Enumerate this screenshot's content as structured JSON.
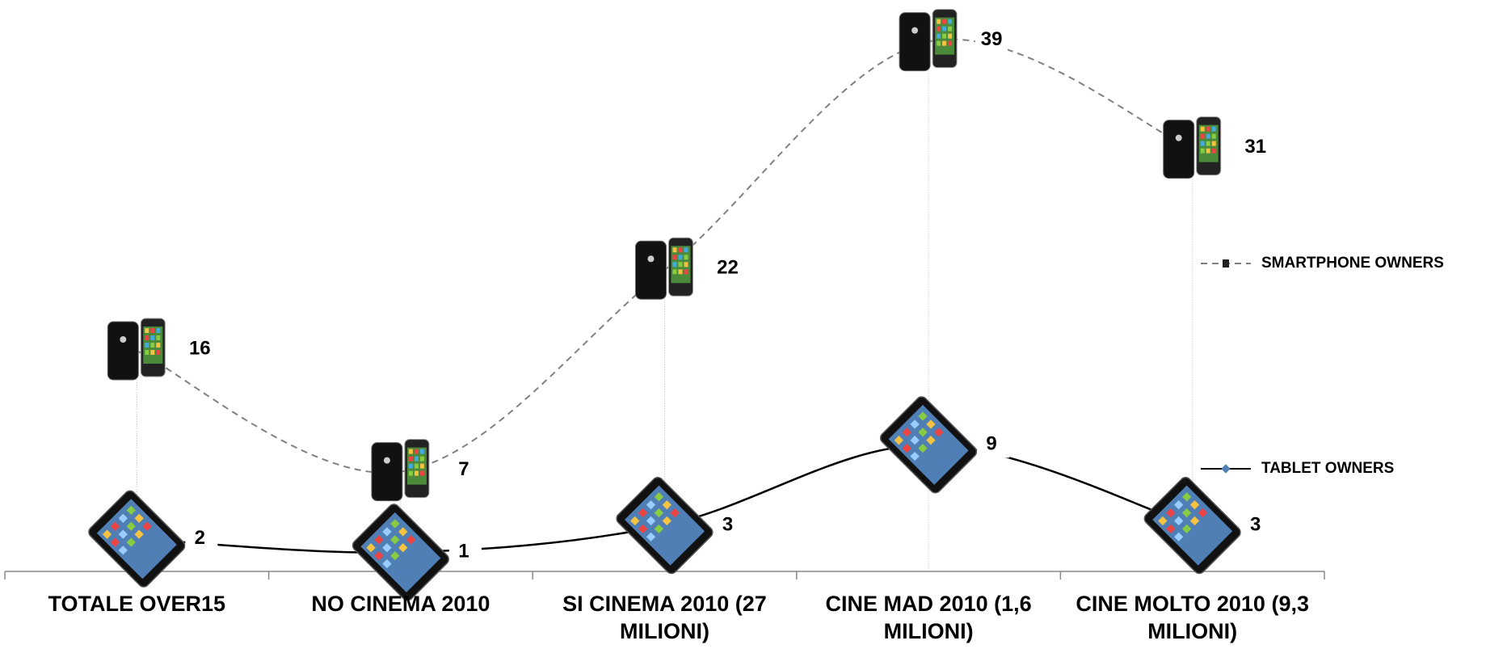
{
  "chart_data": {
    "type": "line",
    "categories": [
      "TOTALE OVER15",
      "NO CINEMA 2010",
      "SI CINEMA 2010 (27 MILIONI)",
      "CINE MAD 2010 (1,6 MILIONI)",
      "CINE MOLTO 2010 (9,3 MILIONI)"
    ],
    "series": [
      {
        "name": "SMARTPHONE OWNERS",
        "color": "#808080",
        "values": [
          16,
          7,
          22,
          39,
          31
        ]
      },
      {
        "name": "TABLET OWNERS",
        "color": "#000000",
        "values": [
          2,
          1,
          3,
          9,
          3
        ]
      }
    ],
    "ylim": [
      0,
      40
    ]
  }
}
